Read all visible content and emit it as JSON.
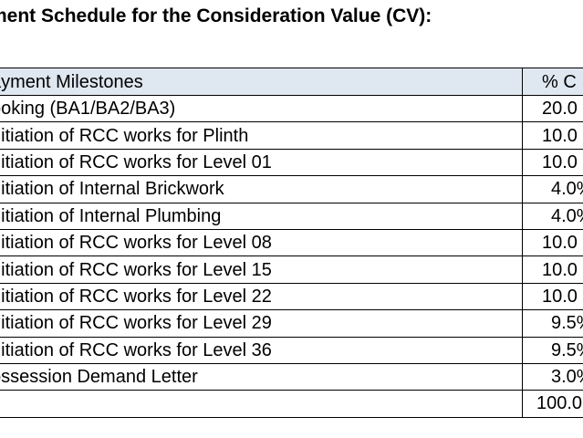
{
  "document": {
    "heading": "ment Schedule for the Consideration Value (CV):"
  },
  "table": {
    "header": {
      "milestone": "ayment Milestones",
      "percent": "% C"
    },
    "rows": [
      {
        "milestone": "ooking (BA1/BA2/BA3)",
        "percent": "20.0"
      },
      {
        "milestone": "nitiation of RCC works for Plinth",
        "percent": "10.0"
      },
      {
        "milestone": "nitiation of RCC works for Level 01",
        "percent": "10.0"
      },
      {
        "milestone": "nitiation of Internal Brickwork",
        "percent": "4.0%"
      },
      {
        "milestone": "nitiation of Internal Plumbing",
        "percent": "4.0%"
      },
      {
        "milestone": "nitiation of RCC works for Level 08",
        "percent": "10.0"
      },
      {
        "milestone": "nitiation of RCC works for Level 15",
        "percent": "10.0"
      },
      {
        "milestone": "nitiation of RCC works for Level 22",
        "percent": "10.0"
      },
      {
        "milestone": "nitiation of RCC works for Level 29",
        "percent": "9.5%"
      },
      {
        "milestone": "nitiation of RCC works for Level 36",
        "percent": "9.5%"
      },
      {
        "milestone": "ossession Demand Letter",
        "percent": "3.0%"
      }
    ],
    "total": {
      "milestone": "",
      "percent": "100.0"
    }
  }
}
